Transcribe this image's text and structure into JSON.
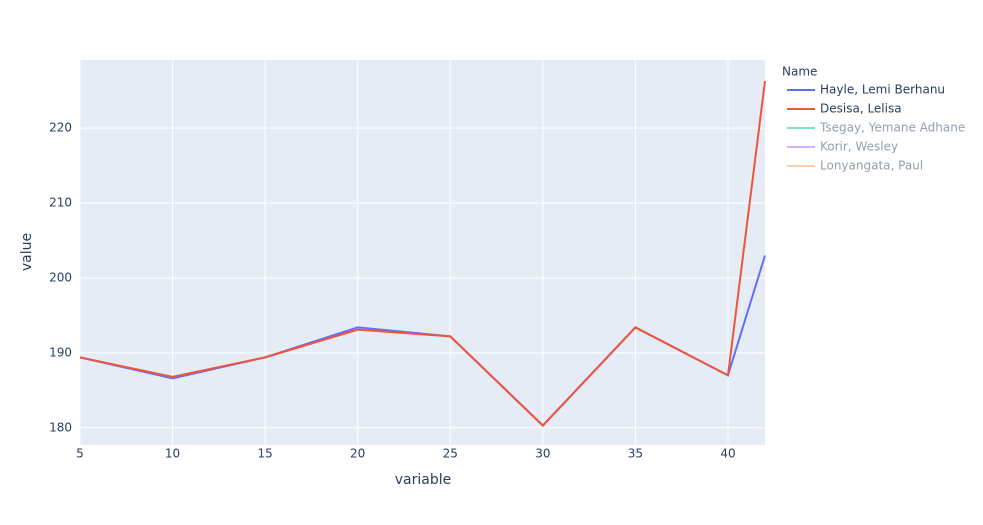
{
  "chart_data": {
    "type": "line",
    "x_label": "variable",
    "y_label": "value",
    "legend_title": "Name",
    "x": [
      5,
      10,
      15,
      20,
      25,
      30,
      35,
      40,
      42
    ],
    "series": [
      {
        "name": "Hayle, Lemi Berhanu",
        "color": "#636efa",
        "visible": true,
        "values": [
          189.4,
          186.6,
          189.4,
          193.4,
          192.2,
          180.3,
          193.4,
          187.0,
          203.0
        ]
      },
      {
        "name": "Desisa, Lelisa",
        "color": "#ef553b",
        "visible": true,
        "values": [
          189.4,
          186.8,
          189.4,
          193.1,
          192.2,
          180.3,
          193.4,
          187.0,
          226.3
        ]
      },
      {
        "name": "Tsegay, Yemane Adhane",
        "color": "#00cc96",
        "visible": false,
        "values": [
          null,
          null,
          null,
          null,
          null,
          null,
          null,
          null,
          null
        ]
      },
      {
        "name": "Korir, Wesley",
        "color": "#ab63fa",
        "visible": false,
        "values": [
          null,
          null,
          null,
          null,
          null,
          null,
          null,
          null,
          null
        ]
      },
      {
        "name": "Lonyangata, Paul",
        "color": "#ffa15a",
        "visible": false,
        "values": [
          null,
          null,
          null,
          null,
          null,
          null,
          null,
          null,
          null
        ]
      }
    ],
    "xlim": [
      5,
      42
    ],
    "ylim": [
      177.7,
      229.1
    ],
    "xticks": [
      5,
      10,
      15,
      20,
      25,
      30,
      35,
      40
    ],
    "yticks": [
      180,
      190,
      200,
      210,
      220
    ],
    "grid": true,
    "legend": "right"
  }
}
